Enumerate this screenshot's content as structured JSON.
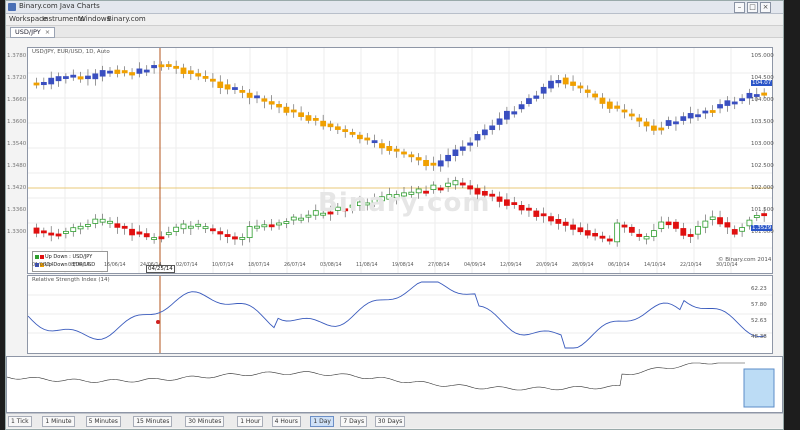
{
  "window": {
    "title": "Binary.com Java Charts",
    "controls": [
      "–",
      "□",
      "×"
    ]
  },
  "menu": [
    "Workspace",
    "Instruments",
    "Windows",
    "Binary.com"
  ],
  "tab": {
    "label": "USD/JPY",
    "close": "×"
  },
  "main_chart": {
    "header": "USD/JPY, EUR/USD, 1D, Auto",
    "legend": [
      {
        "label": "Up  Down : USD/JPY",
        "up_color": "#2e9e2e",
        "down_color": "#e01010"
      },
      {
        "label": "Up  Down : EUR/USD",
        "up_color": "#3a4fc0",
        "down_color": "#f0a000"
      }
    ],
    "price_labels_usdjpy": [
      "105.000",
      "104.500",
      "104.000",
      "103.500",
      "103.000",
      "102.500",
      "102.000",
      "101.500",
      "101.000"
    ],
    "price_labels_eurusd": [
      "1.3780",
      "1.3720",
      "1.3660",
      "1.3600",
      "1.3540",
      "1.3480",
      "1.3420",
      "1.3360",
      "1.3300"
    ],
    "current_price_right_top": "104.07",
    "current_price_right_bottom": "1.3529",
    "date_labels": [
      "01/06/14",
      "08/06/14",
      "16/06/14",
      "24/06/14",
      "02/07/14",
      "10/07/14",
      "18/07/14",
      "26/07/14",
      "03/08/14",
      "11/08/14",
      "19/08/14",
      "27/08/14",
      "04/09/14",
      "12/09/14",
      "20/09/14",
      "28/09/14",
      "06/10/14",
      "14/10/14",
      "22/10/14",
      "30/10/14"
    ],
    "cursor_date": "04/25/14",
    "copyright": "© Binary.com 2014",
    "watermark": "Binary.com",
    "colors": {
      "up_a": "#2e9e2e",
      "down_a": "#e01010",
      "up_b": "#3a4fc0",
      "down_b": "#f0a000"
    }
  },
  "rsi_chart": {
    "header": "Relative Strength Index (14)",
    "labels": [
      "62.23",
      "57.80",
      "52.63",
      "48.38"
    ]
  },
  "timeframes": [
    {
      "label": "1 Tick",
      "active": false
    },
    {
      "label": "1 Minute",
      "active": false
    },
    {
      "label": "5 Minutes",
      "active": false
    },
    {
      "label": "15 Minutes",
      "active": false
    },
    {
      "label": "30 Minutes",
      "active": false
    },
    {
      "label": "1 Hour",
      "active": false
    },
    {
      "label": "4 Hours",
      "active": false
    },
    {
      "label": "1 Day",
      "active": true
    },
    {
      "label": "7 Days",
      "active": false
    },
    {
      "label": "30 Days",
      "active": false
    }
  ]
}
